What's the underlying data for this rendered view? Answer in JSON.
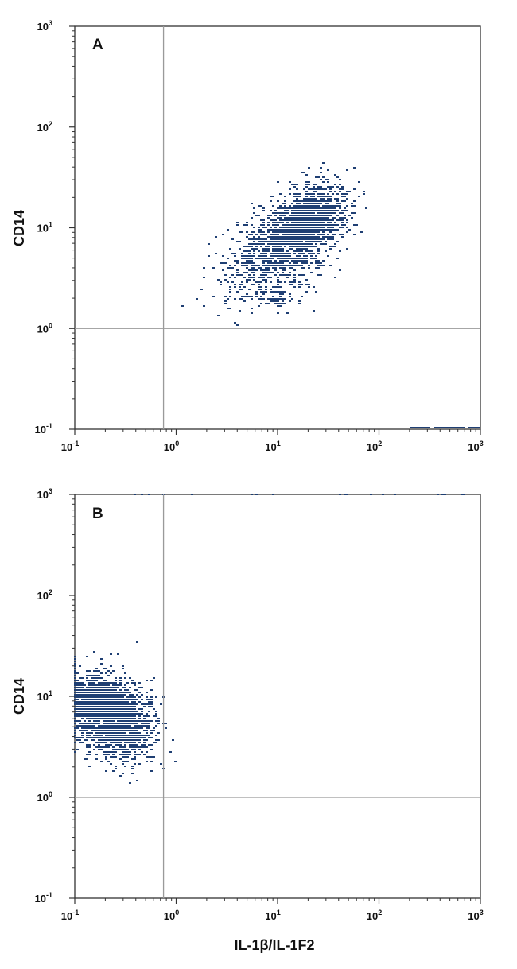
{
  "figure": {
    "x_title": "IL-1β/IL-1F2",
    "y_title": "CD14"
  },
  "chart_data": [
    {
      "type": "scatter",
      "panel": "A",
      "title": "",
      "xlabel": "",
      "ylabel": "CD14",
      "x_scale": "log",
      "y_scale": "log",
      "xlim": [
        0.1,
        1000
      ],
      "ylim": [
        0.1,
        1000
      ],
      "x_ticks": [
        0.1,
        1,
        10,
        100,
        1000
      ],
      "y_ticks": [
        0.1,
        1,
        10,
        100,
        1000
      ],
      "quadrant_gate": {
        "x": 0.75,
        "y": 1.0
      },
      "point_color": "#1f3f73",
      "gate_color": "#9a9a9a",
      "populations": [
        {
          "x_center": 14,
          "y_center": 8.5,
          "x_spread_decades": 0.28,
          "y_spread_decades": 0.26,
          "correlation": 0.55,
          "events": 1500
        },
        {
          "x_center": 22,
          "y_center": 12,
          "x_spread_decades": 0.12,
          "y_spread_decades": 0.12,
          "correlation": 0.3,
          "events": 700
        },
        {
          "x_center": 8,
          "y_center": 3.2,
          "x_spread_decades": 0.3,
          "y_spread_decades": 0.15,
          "correlation": 0.2,
          "events": 160
        },
        {
          "x_center": 10,
          "y_center": 1.9,
          "x_spread_decades": 0.05,
          "y_spread_decades": 0.03,
          "correlation": 0,
          "events": 45
        }
      ],
      "edge_events": [
        {
          "x_min": 200,
          "x_max": 1000,
          "y": 0.1,
          "events": 70
        }
      ]
    },
    {
      "type": "scatter",
      "panel": "B",
      "title": "",
      "xlabel": "IL-1β/IL-1F2",
      "ylabel": "CD14",
      "x_scale": "log",
      "y_scale": "log",
      "xlim": [
        0.1,
        1000
      ],
      "ylim": [
        0.1,
        1000
      ],
      "x_ticks": [
        0.1,
        1,
        10,
        100,
        1000
      ],
      "y_ticks": [
        0.1,
        1,
        10,
        100,
        1000
      ],
      "quadrant_gate": {
        "x": 0.75,
        "y": 1.0
      },
      "point_color": "#1f3f73",
      "gate_color": "#9a9a9a",
      "populations": [
        {
          "x_center": 0.24,
          "y_center": 6.0,
          "x_spread_decades": 0.19,
          "y_spread_decades": 0.2,
          "correlation": -0.25,
          "events": 2000
        },
        {
          "x_center": 0.15,
          "y_center": 9.0,
          "x_spread_decades": 0.1,
          "y_spread_decades": 0.1,
          "correlation": 0,
          "events": 600
        }
      ],
      "edge_events": [
        {
          "x": 0.1,
          "y_min": 3.5,
          "y_max": 25,
          "events": 90
        },
        {
          "x_min": 0.25,
          "x_max": 1000,
          "y": 1000,
          "events": 20
        }
      ]
    }
  ]
}
